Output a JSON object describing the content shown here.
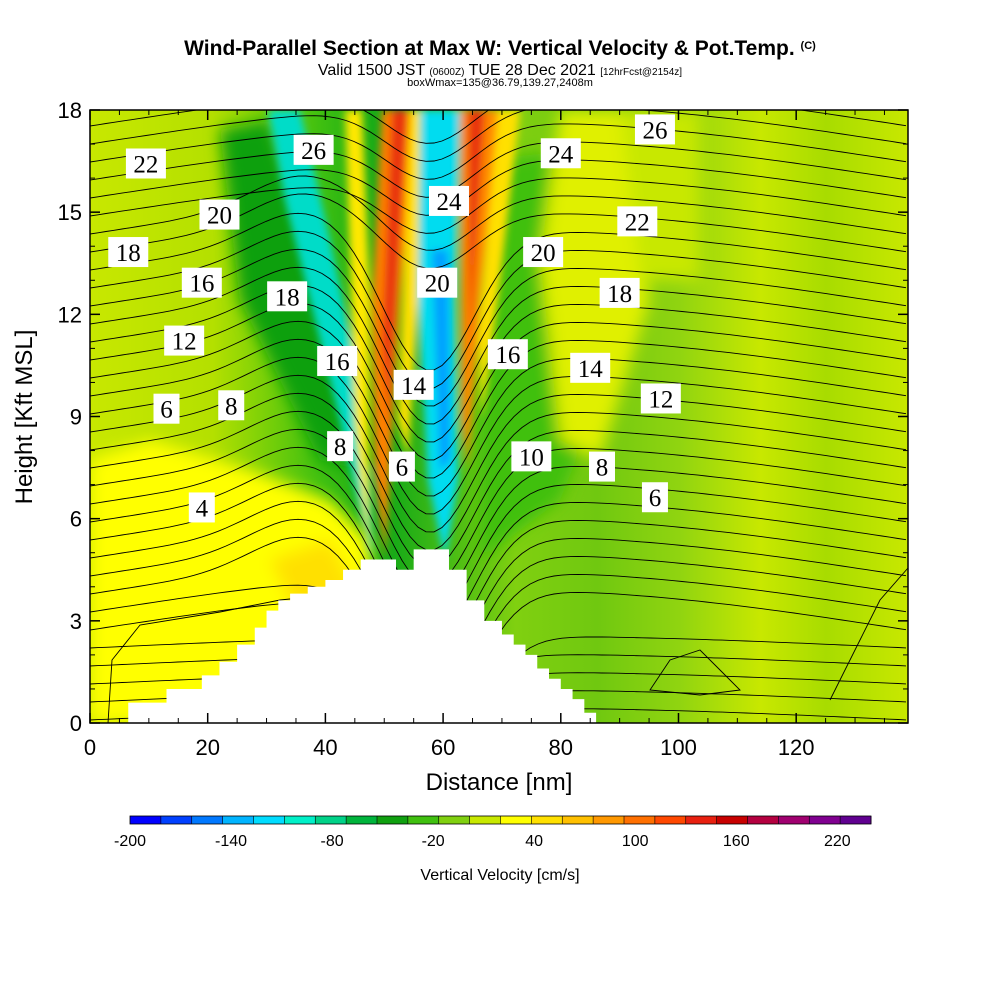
{
  "header": {
    "title": "Wind-Parallel Section at Max W: Vertical Velocity & Pot.Temp.",
    "title_mark": "(C)",
    "valid": "Valid 1500 JST",
    "valid_z": "(0600Z)",
    "date": "TUE 28 Dec 2021",
    "fcst": "[12hrFcst@2154z]",
    "box_info": "boxWmax=135@36.79,139.27,2408m"
  },
  "chart_data": {
    "type": "heatmap",
    "xlabel": "Distance [nm]",
    "ylabel": "Height [Kft MSL]",
    "xlim": [
      0,
      139
    ],
    "ylim": [
      0,
      18
    ],
    "xticks": [
      0,
      20,
      40,
      60,
      80,
      100,
      120
    ],
    "yticks": [
      0,
      3,
      6,
      9,
      12,
      15,
      18
    ],
    "colorbar": {
      "label": "Vertical Velocity [cm/s]",
      "min": -200,
      "max": 240,
      "step": 20,
      "tick_values": [
        -200,
        -140,
        -80,
        -20,
        40,
        100,
        160,
        220
      ],
      "tick_labels": [
        "-200",
        "-140",
        "-80",
        "-20",
        "40",
        "100",
        "160",
        "220"
      ],
      "colors": [
        "#0000ff",
        "#0040ff",
        "#0078ff",
        "#00b4ff",
        "#00dcff",
        "#00f0c8",
        "#00d288",
        "#00b43c",
        "#10a010",
        "#40c010",
        "#80d010",
        "#c8e800",
        "#ffff00",
        "#ffe000",
        "#ffc000",
        "#ff9800",
        "#ff7000",
        "#ff4800",
        "#e82010",
        "#c80000",
        "#b40040",
        "#a00070",
        "#800090",
        "#600090"
      ]
    },
    "terrain_nm_kft": [
      [
        6.5,
        0.6
      ],
      [
        13,
        1.0
      ],
      [
        19,
        1.4
      ],
      [
        22,
        1.8
      ],
      [
        25,
        2.3
      ],
      [
        28,
        2.8
      ],
      [
        30,
        3.3
      ],
      [
        32,
        3.6
      ],
      [
        34,
        3.8
      ],
      [
        37,
        4.0
      ],
      [
        40,
        4.2
      ],
      [
        43,
        4.5
      ],
      [
        46,
        4.8
      ],
      [
        52,
        4.5
      ],
      [
        55,
        5.1
      ],
      [
        61,
        4.5
      ],
      [
        64,
        3.6
      ],
      [
        67,
        3.0
      ],
      [
        70,
        2.6
      ],
      [
        72,
        2.3
      ],
      [
        74,
        2.0
      ],
      [
        76,
        1.6
      ],
      [
        78,
        1.3
      ],
      [
        80,
        1.0
      ],
      [
        82,
        0.7
      ],
      [
        84,
        0.3
      ],
      [
        86,
        0.0
      ]
    ],
    "theta_contours": [
      {
        "value": 4,
        "label": "4",
        "label_pos": [
          19,
          6.3
        ]
      },
      {
        "value": 6,
        "label": "6",
        "label_pos": [
          13,
          9.2
        ]
      },
      {
        "value": 8,
        "label": "8",
        "label_pos": [
          24,
          9.3
        ]
      },
      {
        "value": 12,
        "label": "12",
        "label_pos": [
          16,
          11.2
        ]
      },
      {
        "value": 16,
        "label": "16",
        "label_pos": [
          19,
          12.9
        ]
      },
      {
        "value": 18,
        "label": "18",
        "label_pos": [
          6.5,
          13.8
        ]
      },
      {
        "value": 20,
        "label": "20",
        "label_pos": [
          22,
          14.9
        ]
      },
      {
        "value": 22,
        "label": "22",
        "label_pos": [
          9.5,
          16.4
        ]
      },
      {
        "value": 26,
        "label": "26",
        "label_pos": [
          38,
          16.8
        ]
      },
      {
        "value": 18,
        "label": "18",
        "label_pos": [
          33.5,
          12.5
        ]
      },
      {
        "value": 16,
        "label": "16",
        "label_pos": [
          42,
          10.6
        ]
      },
      {
        "value": 8,
        "label": "8",
        "label_pos": [
          42.5,
          8.1
        ]
      },
      {
        "value": 6,
        "label": "6",
        "label_pos": [
          53,
          7.5
        ]
      },
      {
        "value": 14,
        "label": "14",
        "label_pos": [
          55,
          9.9
        ]
      },
      {
        "value": 20,
        "label": "20",
        "label_pos": [
          59,
          12.9
        ]
      },
      {
        "value": 24,
        "label": "24",
        "label_pos": [
          61,
          15.3
        ]
      },
      {
        "value": 16,
        "label": "16",
        "label_pos": [
          71,
          10.8
        ]
      },
      {
        "value": 20,
        "label": "20",
        "label_pos": [
          77,
          13.8
        ]
      },
      {
        "value": 24,
        "label": "24",
        "label_pos": [
          80,
          16.7
        ]
      },
      {
        "value": 10,
        "label": "10",
        "label_pos": [
          75,
          7.8
        ]
      },
      {
        "value": 8,
        "label": "8",
        "label_pos": [
          87,
          7.5
        ]
      },
      {
        "value": 6,
        "label": "6",
        "label_pos": [
          96,
          6.6
        ]
      },
      {
        "value": 12,
        "label": "12",
        "label_pos": [
          97,
          9.5
        ]
      },
      {
        "value": 14,
        "label": "14",
        "label_pos": [
          85,
          10.4
        ]
      },
      {
        "value": 18,
        "label": "18",
        "label_pos": [
          90,
          12.6
        ]
      },
      {
        "value": 22,
        "label": "22",
        "label_pos": [
          93,
          14.7
        ]
      },
      {
        "value": 26,
        "label": "26",
        "label_pos": [
          96,
          17.4
        ]
      }
    ]
  }
}
